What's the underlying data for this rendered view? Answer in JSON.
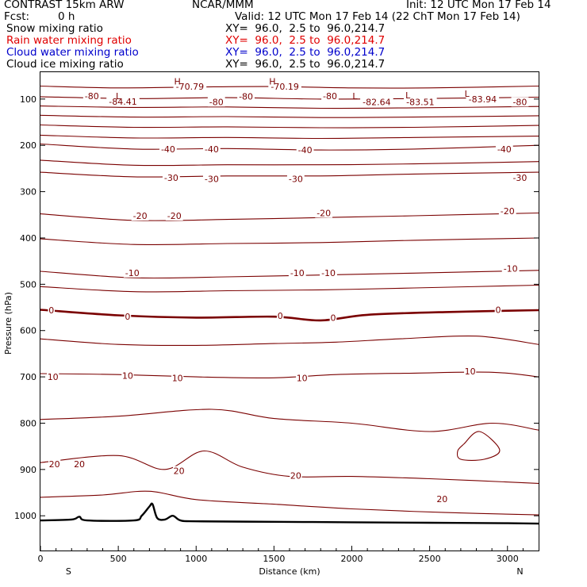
{
  "header": {
    "model": "CONTRAST 15km ARW",
    "center": "NCAR/MMM",
    "init": "Init: 12 UTC Mon 17 Feb 14",
    "fcst_label": "Fcst:",
    "fcst_value": "0 h",
    "valid": "Valid: 12 UTC Mon 17 Feb 14 (22 ChT Mon 17 Feb 14)"
  },
  "legend": [
    {
      "name": "Snow mixing ratio",
      "color": "#000000",
      "xy": "XY=  96.0,  2.5 to  96.0,214.7"
    },
    {
      "name": "Rain water mixing ratio",
      "color": "#e00000",
      "xy": "XY=  96.0,  2.5 to  96.0,214.7"
    },
    {
      "name": "Cloud water mixing ratio",
      "color": "#0000cc",
      "xy": "XY=  96.0,  2.5 to  96.0,214.7"
    },
    {
      "name": "Cloud ice mixing ratio",
      "color": "#000000",
      "xy": "XY=  96.0,  2.5 to  96.0,214.7"
    }
  ],
  "chart_data": {
    "type": "line",
    "xlabel": "Distance (km)",
    "ylabel": "Pressure (hPa)",
    "xlim": [
      0,
      3200
    ],
    "ylim": [
      1075,
      42
    ],
    "x_ticks": [
      0,
      500,
      1000,
      1500,
      2000,
      2500,
      3000
    ],
    "x_tick_labels": [
      "0",
      "500",
      "1000",
      "1500",
      "2000",
      "2500",
      "3000"
    ],
    "y_ticks": [
      100,
      200,
      300,
      400,
      500,
      600,
      700,
      800,
      900,
      1000
    ],
    "y_tick_labels": [
      "100",
      "200",
      "300",
      "400",
      "500",
      "600",
      "700",
      "800",
      "900",
      "1000"
    ],
    "endpoint_left": "S",
    "endpoint_right": "N",
    "contour_color": "#7a0000",
    "terrain_color": "#000000",
    "contours": [
      {
        "level": -80,
        "bold": false,
        "x": [
          0,
          500,
          1000,
          1500,
          2000,
          2500,
          3200
        ],
        "p": [
          72,
          76,
          74,
          73,
          76,
          76,
          72
        ]
      },
      {
        "level": null,
        "bold": false,
        "x": [
          0,
          600,
          1200,
          1800,
          2400,
          3200
        ],
        "p": [
          95,
          99,
          97,
          100,
          99,
          96
        ]
      },
      {
        "level": null,
        "bold": false,
        "x": [
          0,
          600,
          1200,
          1800,
          2400,
          3200
        ],
        "p": [
          115,
          118,
          117,
          120,
          119,
          116
        ]
      },
      {
        "level": null,
        "bold": false,
        "x": [
          0,
          600,
          1200,
          1800,
          2400,
          3200
        ],
        "p": [
          135,
          139,
          138,
          140,
          139,
          136
        ]
      },
      {
        "level": null,
        "bold": false,
        "x": [
          0,
          600,
          1200,
          1800,
          2400,
          3200
        ],
        "p": [
          156,
          161,
          160,
          162,
          161,
          157
        ]
      },
      {
        "level": null,
        "bold": false,
        "x": [
          0,
          600,
          1200,
          1800,
          2400,
          3200
        ],
        "p": [
          178,
          184,
          183,
          185,
          183,
          180
        ]
      },
      {
        "level": -40,
        "bold": false,
        "x": [
          0,
          600,
          1200,
          1800,
          2400,
          3200
        ],
        "p": [
          197,
          208,
          207,
          210,
          208,
          200
        ]
      },
      {
        "level": -30,
        "bold": false,
        "x": [
          0,
          600,
          1200,
          1800,
          2400,
          3200
        ],
        "p": [
          232,
          243,
          242,
          242,
          240,
          235
        ]
      },
      {
        "level": null,
        "bold": false,
        "x": [
          0,
          600,
          1200,
          1800,
          2400,
          3200
        ],
        "p": [
          258,
          268,
          266,
          266,
          262,
          258
        ]
      },
      {
        "level": -20,
        "bold": false,
        "x": [
          0,
          600,
          1200,
          1800,
          2400,
          3200
        ],
        "p": [
          348,
          362,
          360,
          356,
          352,
          346
        ]
      },
      {
        "level": null,
        "bold": false,
        "x": [
          0,
          600,
          1200,
          1800,
          2400,
          3200
        ],
        "p": [
          402,
          414,
          412,
          410,
          405,
          400
        ]
      },
      {
        "level": -10,
        "bold": false,
        "x": [
          0,
          600,
          1200,
          1800,
          2400,
          3200
        ],
        "p": [
          472,
          486,
          484,
          480,
          476,
          470
        ]
      },
      {
        "level": null,
        "bold": false,
        "x": [
          0,
          600,
          1200,
          1800,
          2400,
          3200
        ],
        "p": [
          505,
          516,
          514,
          512,
          508,
          502
        ]
      },
      {
        "level": 0,
        "bold": true,
        "x": [
          0,
          500,
          1000,
          1500,
          1800,
          2100,
          2600,
          3200
        ],
        "p": [
          555,
          567,
          572,
          570,
          578,
          566,
          560,
          556
        ]
      },
      {
        "level": null,
        "bold": false,
        "x": [
          0,
          500,
          1000,
          1500,
          1900,
          2300,
          2800,
          3200
        ],
        "p": [
          618,
          630,
          632,
          628,
          625,
          618,
          612,
          630
        ]
      },
      {
        "level": 10,
        "bold": false,
        "x": [
          0,
          500,
          1000,
          1500,
          1900,
          2400,
          2900,
          3200
        ],
        "p": [
          693,
          695,
          700,
          702,
          695,
          692,
          690,
          700
        ]
      },
      {
        "level": null,
        "bold": false,
        "x": [
          0,
          500,
          1100,
          1500,
          2000,
          2500,
          2900,
          3200
        ],
        "p": [
          792,
          785,
          770,
          790,
          800,
          818,
          800,
          815
        ]
      },
      {
        "level": 20,
        "bold": false,
        "x": [
          0,
          500,
          800,
          1050,
          1300,
          1600,
          2000,
          2500,
          3200
        ],
        "p": [
          885,
          870,
          900,
          860,
          895,
          915,
          915,
          920,
          930
        ]
      },
      {
        "level": null,
        "bold": false,
        "x": [
          0,
          400,
          700,
          1000,
          1500,
          2000,
          2600,
          3200
        ],
        "p": [
          960,
          955,
          947,
          965,
          975,
          985,
          993,
          998
        ]
      }
    ],
    "closed_contours": [
      {
        "x": [
          2720,
          2820,
          2950,
          2850,
          2700,
          2680,
          2720
        ],
        "p": [
          845,
          818,
          858,
          878,
          878,
          860,
          845
        ]
      }
    ],
    "terrain": {
      "x": [
        0,
        200,
        250,
        300,
        600,
        650,
        700,
        720,
        750,
        800,
        850,
        900,
        1000,
        1500,
        2000,
        2500,
        3000,
        3200
      ],
      "p": [
        1010,
        1008,
        1002,
        1010,
        1010,
        1000,
        980,
        975,
        1005,
        1008,
        1000,
        1010,
        1012,
        1013,
        1014,
        1015,
        1016,
        1017
      ]
    },
    "contour_labels": [
      {
        "text": "-80",
        "x": 330,
        "p": 93
      },
      {
        "text": "-84.41",
        "x": 530,
        "p": 105
      },
      {
        "text": "-70.79",
        "x": 960,
        "p": 73
      },
      {
        "text": "-80",
        "x": 1130,
        "p": 106
      },
      {
        "text": "-80",
        "x": 1320,
        "p": 94
      },
      {
        "text": "-70.19",
        "x": 1570,
        "p": 73
      },
      {
        "text": "-80",
        "x": 1860,
        "p": 93
      },
      {
        "text": "-82.64",
        "x": 2160,
        "p": 106
      },
      {
        "text": "-83.51",
        "x": 2440,
        "p": 106
      },
      {
        "text": "-83.94",
        "x": 2840,
        "p": 100
      },
      {
        "text": "-80",
        "x": 3080,
        "p": 106
      },
      {
        "text": "-40",
        "x": 820,
        "p": 208
      },
      {
        "text": "-40",
        "x": 1100,
        "p": 208
      },
      {
        "text": "-40",
        "x": 1700,
        "p": 210
      },
      {
        "text": "-40",
        "x": 2980,
        "p": 208
      },
      {
        "text": "-30",
        "x": 840,
        "p": 270
      },
      {
        "text": "-30",
        "x": 1100,
        "p": 272
      },
      {
        "text": "-30",
        "x": 1640,
        "p": 272
      },
      {
        "text": "-30",
        "x": 3080,
        "p": 270
      },
      {
        "text": "-20",
        "x": 640,
        "p": 352
      },
      {
        "text": "-20",
        "x": 860,
        "p": 352
      },
      {
        "text": "-20",
        "x": 1820,
        "p": 346
      },
      {
        "text": "-20",
        "x": 3000,
        "p": 342
      },
      {
        "text": "-10",
        "x": 590,
        "p": 475
      },
      {
        "text": "-10",
        "x": 1650,
        "p": 475
      },
      {
        "text": "-10",
        "x": 1850,
        "p": 475
      },
      {
        "text": "-10",
        "x": 3020,
        "p": 466
      },
      {
        "text": "0",
        "x": 70,
        "p": 556
      },
      {
        "text": "0",
        "x": 560,
        "p": 570
      },
      {
        "text": "0",
        "x": 1540,
        "p": 568
      },
      {
        "text": "0",
        "x": 1880,
        "p": 572
      },
      {
        "text": "0",
        "x": 2940,
        "p": 555
      },
      {
        "text": "10",
        "x": 80,
        "p": 700
      },
      {
        "text": "10",
        "x": 560,
        "p": 697
      },
      {
        "text": "10",
        "x": 880,
        "p": 702
      },
      {
        "text": "10",
        "x": 1680,
        "p": 702
      },
      {
        "text": "10",
        "x": 2760,
        "p": 688
      },
      {
        "text": "20",
        "x": 90,
        "p": 888
      },
      {
        "text": "20",
        "x": 250,
        "p": 888
      },
      {
        "text": "20",
        "x": 890,
        "p": 903
      },
      {
        "text": "20",
        "x": 1640,
        "p": 913
      },
      {
        "text": "20",
        "x": 2580,
        "p": 964
      }
    ],
    "marks_L": [
      {
        "text": "L",
        "x": 500,
        "p": 93
      },
      {
        "text": "L",
        "x": 2020,
        "p": 93
      },
      {
        "text": "L",
        "x": 2360,
        "p": 92
      },
      {
        "text": "L",
        "x": 2740,
        "p": 88
      }
    ],
    "marks_H": [
      {
        "text": "H",
        "x": 880,
        "p": 62
      },
      {
        "text": "H",
        "x": 1490,
        "p": 62
      }
    ]
  }
}
